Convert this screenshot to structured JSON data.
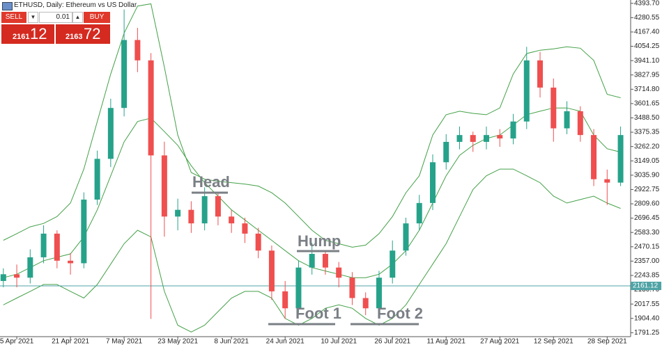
{
  "chart_data": {
    "type": "candlestick",
    "title": "ETHUSD, Daily: Ethereum vs US Dollar",
    "x": [
      "2021-04-01",
      "2021-04-05",
      "2021-04-09",
      "2021-04-13",
      "2021-04-17",
      "2021-04-21",
      "2021-04-25",
      "2021-04-29",
      "2021-05-03",
      "2021-05-07",
      "2021-05-11",
      "2021-05-15",
      "2021-05-19",
      "2021-05-23",
      "2021-05-27",
      "2021-05-31",
      "2021-06-04",
      "2021-06-08",
      "2021-06-12",
      "2021-06-16",
      "2021-06-20",
      "2021-06-24",
      "2021-06-28",
      "2021-07-02",
      "2021-07-06",
      "2021-07-10",
      "2021-07-14",
      "2021-07-18",
      "2021-07-22",
      "2021-07-26",
      "2021-07-30",
      "2021-08-03",
      "2021-08-07",
      "2021-08-11",
      "2021-08-15",
      "2021-08-19",
      "2021-08-23",
      "2021-08-27",
      "2021-08-31",
      "2021-09-04",
      "2021-09-08",
      "2021-09-12",
      "2021-09-16",
      "2021-09-20",
      "2021-09-24",
      "2021-09-28",
      "2021-10-02"
    ],
    "open": [
      2200,
      2253,
      2226,
      2387,
      2574,
      2360,
      2340,
      2843,
      3165,
      3567,
      4104,
      3943,
      3192,
      2709,
      2762,
      2655,
      2870,
      2709,
      2655,
      2574,
      2440,
      2118,
      1984,
      2306,
      2414,
      2306,
      2226,
      2065,
      1984,
      2226,
      2440,
      2655,
      2816,
      3138,
      3299,
      3353,
      3299,
      3353,
      3326,
      3460,
      3943,
      3728,
      3406,
      3541,
      3353,
      3004,
      2977
    ],
    "high": [
      2300,
      2330,
      2450,
      2640,
      2600,
      2420,
      2900,
      3230,
      3640,
      4345,
      4200,
      4000,
      3300,
      2850,
      2830,
      2940,
      2900,
      2760,
      2700,
      2620,
      2480,
      2200,
      2360,
      2500,
      2440,
      2350,
      2270,
      2110,
      2280,
      2520,
      2700,
      2880,
      3200,
      3360,
      3420,
      3380,
      3420,
      3400,
      3520,
      4050,
      4010,
      3800,
      3620,
      3580,
      3400,
      3080,
      3420
    ],
    "low": [
      2150,
      2150,
      2180,
      2340,
      2300,
      2250,
      2300,
      2800,
      3100,
      3500,
      3850,
      1900,
      2550,
      2600,
      2580,
      2600,
      2640,
      2580,
      2500,
      2380,
      2050,
      1900,
      1950,
      2250,
      2250,
      2150,
      2010,
      1930,
      1950,
      2180,
      2400,
      2600,
      2760,
      3080,
      3240,
      3220,
      3240,
      3260,
      3280,
      3400,
      3650,
      3300,
      3360,
      3300,
      2950,
      2800,
      2950
    ],
    "close": [
      2253,
      2226,
      2387,
      2574,
      2360,
      2340,
      2843,
      3165,
      3567,
      4104,
      3943,
      3192,
      2709,
      2762,
      2655,
      2870,
      2709,
      2655,
      2574,
      2440,
      2118,
      1984,
      2306,
      2414,
      2306,
      2226,
      2065,
      1984,
      2226,
      2440,
      2655,
      2816,
      3138,
      3299,
      3353,
      3299,
      3353,
      3326,
      3460,
      3943,
      3728,
      3406,
      3541,
      3353,
      3004,
      2977,
      3353
    ],
    "up_color": "#26a28a",
    "down_color": "#ef4f4f",
    "bands": [
      {
        "color": "#43a047",
        "values": [
          2521,
          2574,
          2628,
          2655,
          2709,
          2816,
          3084,
          3460,
          3836,
          4158,
          4372,
          4390,
          3889,
          3353,
          3057,
          3004,
          2988,
          2977,
          2966,
          2950,
          2897,
          2816,
          2709,
          2601,
          2521,
          2494,
          2467,
          2483,
          2574,
          2709,
          2897,
          3031,
          3353,
          3514,
          3541,
          3524,
          3514,
          3567,
          3836,
          3997,
          4023,
          4034,
          4050,
          4039,
          3943,
          3675,
          3648
        ]
      },
      {
        "color": "#43a047",
        "values": [
          2226,
          2253,
          2306,
          2360,
          2387,
          2414,
          2548,
          2762,
          3031,
          3299,
          3460,
          3487,
          3380,
          3272,
          3111,
          2977,
          2870,
          2762,
          2682,
          2601,
          2521,
          2440,
          2360,
          2306,
          2279,
          2253,
          2226,
          2226,
          2253,
          2333,
          2440,
          2601,
          2816,
          3031,
          3192,
          3272,
          3326,
          3353,
          3433,
          3514,
          3541,
          3567,
          3567,
          3541,
          3353,
          3245,
          3218
        ]
      },
      {
        "color": "#43a047",
        "values": [
          2011,
          2065,
          2118,
          2172,
          2172,
          2118,
          2065,
          2172,
          2333,
          2494,
          2601,
          2548,
          2118,
          1850,
          1797,
          1850,
          1958,
          2065,
          2118,
          2118,
          2065,
          1904,
          1850,
          1904,
          1984,
          2011,
          1984,
          1904,
          1850,
          1904,
          2011,
          2172,
          2333,
          2494,
          2709,
          2923,
          3031,
          3084,
          3084,
          3031,
          2977,
          2870,
          2816,
          2843,
          2870,
          2816,
          2773
        ]
      }
    ],
    "current_price": {
      "value": 2161.12,
      "label": "2161.12",
      "color": "#4fa3a5"
    },
    "xlim": [
      "2021-03-31",
      "2021-10-05"
    ],
    "xticks": [
      {
        "value": "2021-04-05",
        "label": "5 Apr 2021"
      },
      {
        "value": "2021-04-21",
        "label": "21 Apr 2021"
      },
      {
        "value": "2021-05-07",
        "label": "7 May 2021"
      },
      {
        "value": "2021-05-23",
        "label": "23 May 2021"
      },
      {
        "value": "2021-06-08",
        "label": "8 Jun 2021"
      },
      {
        "value": "2021-06-24",
        "label": "24 Jun 2021"
      },
      {
        "value": "2021-07-10",
        "label": "10 Jul 2021"
      },
      {
        "value": "2021-07-26",
        "label": "26 Jul 2021"
      },
      {
        "value": "2021-08-11",
        "label": "11 Aug 2021"
      },
      {
        "value": "2021-08-27",
        "label": "27 Aug 2021"
      },
      {
        "value": "2021-09-12",
        "label": "12 Sep 2021"
      },
      {
        "value": "2021-09-28",
        "label": "28 Sep 2021"
      }
    ],
    "ylim": [
      1760,
      4420
    ],
    "yticks": [
      {
        "value": 4393.7,
        "label": "4393.70"
      },
      {
        "value": 4280.55,
        "label": "4280.55"
      },
      {
        "value": 4167.4,
        "label": "4167.40"
      },
      {
        "value": 4054.25,
        "label": "4054.25"
      },
      {
        "value": 3941.1,
        "label": "3941.10"
      },
      {
        "value": 3827.95,
        "label": "3827.95"
      },
      {
        "value": 3714.8,
        "label": "3714.80"
      },
      {
        "value": 3601.65,
        "label": "3601.65"
      },
      {
        "value": 3488.5,
        "label": "3488.50"
      },
      {
        "value": 3375.35,
        "label": "3375.35"
      },
      {
        "value": 3262.2,
        "label": "3262.20"
      },
      {
        "value": 3149.05,
        "label": "3149.05"
      },
      {
        "value": 3035.9,
        "label": "3035.90"
      },
      {
        "value": 2922.75,
        "label": "2922.75"
      },
      {
        "value": 2809.6,
        "label": "2809.60"
      },
      {
        "value": 2696.45,
        "label": "2696.45"
      },
      {
        "value": 2583.3,
        "label": "2583.30"
      },
      {
        "value": 2470.15,
        "label": "2470.15"
      },
      {
        "value": 2357,
        "label": "2357.00"
      },
      {
        "value": 2243.85,
        "label": "2243.85"
      },
      {
        "value": 2130.7,
        "label": "2130.70"
      },
      {
        "value": 2017.55,
        "label": "2017.55"
      },
      {
        "value": 1904.4,
        "label": "1904.40"
      },
      {
        "value": 1791.25,
        "label": "1791.25"
      }
    ],
    "grid": false,
    "annotations": [
      "Head",
      "Hump",
      "Foot 1",
      "Foot 2"
    ]
  },
  "trade_panel": {
    "sell": "SELL",
    "buy": "BUY",
    "volume": "0.01",
    "sell_price_small": "2161",
    "sell_price_big": "12",
    "buy_price_small": "2163",
    "buy_price_big": "72"
  }
}
